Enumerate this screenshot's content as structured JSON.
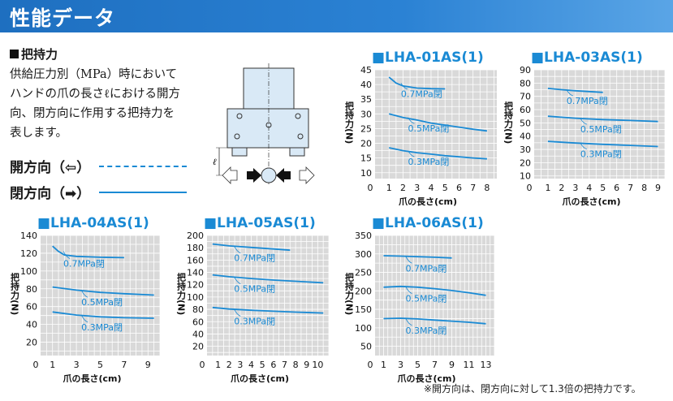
{
  "banner": {
    "title": "性能データ"
  },
  "section": {
    "title": "把持力"
  },
  "description": [
    "供給圧力別（MPa）時において",
    "ハンドの爪の長さℓにおける開方",
    "向、閉方向に作用する把持力を",
    "表します。"
  ],
  "legend": {
    "open_label": "開方向（⇦）",
    "close_label": "閉方向（➡）"
  },
  "diagram": {
    "length_symbol": "ℓ"
  },
  "footnote": "※開方向は、閉方向に対して1.3倍の把持力です。",
  "colors": {
    "accent": "#1a8ad4",
    "grid": "#ffffff",
    "plot_bg": "#d9d9d9",
    "banner": "#1e6fc0"
  },
  "chart_data": [
    {
      "type": "line",
      "title": "■LHA-01AS(1)",
      "xlabel": "爪の長さ(cm)",
      "ylabel": "把持力(N)",
      "xlim": [
        0,
        8.7
      ],
      "ylim": [
        8,
        45
      ],
      "xticks": [
        0,
        1,
        2,
        3,
        4,
        5,
        6,
        7,
        8
      ],
      "yticks": [
        10,
        15,
        20,
        25,
        30,
        35,
        40,
        45
      ],
      "grid": true,
      "series": [
        {
          "name": "0.7MPa閉",
          "x": [
            1,
            1.5,
            2,
            3,
            4,
            5
          ],
          "y": [
            42.5,
            40.5,
            39.5,
            38.8,
            38.6,
            38.5
          ]
        },
        {
          "name": "0.5MPa閉",
          "x": [
            1,
            2,
            3,
            4,
            5,
            6,
            7,
            8
          ],
          "y": [
            30,
            28.8,
            27.9,
            26.9,
            26.2,
            25.5,
            24.8,
            24.2
          ]
        },
        {
          "name": "0.3MPa閉",
          "x": [
            1,
            2,
            3,
            4,
            5,
            6,
            7,
            8
          ],
          "y": [
            18.5,
            17.5,
            16.8,
            16.3,
            15.8,
            15.4,
            15,
            14.7
          ]
        }
      ]
    },
    {
      "type": "line",
      "title": "■LHA-03AS(1)",
      "xlabel": "爪の長さ(cm)",
      "ylabel": "把持力(N)",
      "xlim": [
        0,
        9.5
      ],
      "ylim": [
        8,
        90
      ],
      "xticks": [
        0,
        1,
        2,
        3,
        4,
        5,
        6,
        7,
        8,
        9
      ],
      "yticks": [
        10,
        20,
        30,
        40,
        50,
        60,
        70,
        80,
        90
      ],
      "grid": true,
      "series": [
        {
          "name": "0.7MPa閉",
          "x": [
            1,
            2,
            3,
            4,
            5
          ],
          "y": [
            76,
            75,
            74.2,
            73.6,
            73
          ]
        },
        {
          "name": "0.5MPa閉",
          "x": [
            1,
            3,
            5,
            7,
            9
          ],
          "y": [
            55,
            53.5,
            52.5,
            51.8,
            51
          ]
        },
        {
          "name": "0.3MPa閉",
          "x": [
            1,
            3,
            5,
            7,
            9
          ],
          "y": [
            36,
            34.8,
            33.8,
            33,
            32.2
          ]
        }
      ]
    },
    {
      "type": "line",
      "title": "■LHA-04AS(1)",
      "xlabel": "爪の長さ(cm)",
      "ylabel": "把持力(N)",
      "xlim": [
        0,
        10
      ],
      "ylim": [
        5,
        140
      ],
      "xticks": [
        0,
        1,
        3,
        5,
        7,
        9
      ],
      "yticks": [
        20,
        40,
        60,
        80,
        100,
        120,
        140
      ],
      "grid": true,
      "series": [
        {
          "name": "0.7MPa閉",
          "x": [
            1,
            1.5,
            2,
            3,
            5,
            7
          ],
          "y": [
            128,
            122,
            118,
            116.5,
            115.5,
            115
          ]
        },
        {
          "name": "0.5MPa閉",
          "x": [
            1,
            3,
            5,
            7,
            9.5
          ],
          "y": [
            82,
            78.5,
            76,
            74.5,
            73
          ]
        },
        {
          "name": "0.3MPa閉",
          "x": [
            1,
            3,
            5,
            7,
            9.5
          ],
          "y": [
            54,
            50.5,
            48.5,
            47.5,
            47
          ]
        }
      ]
    },
    {
      "type": "line",
      "title": "■LHA-05AS(1)",
      "xlabel": "爪の長さ(cm)",
      "ylabel": "把持力(N)",
      "xlim": [
        0,
        11
      ],
      "ylim": [
        5,
        200
      ],
      "xticks": [
        0,
        1,
        2,
        3,
        4,
        5,
        6,
        7,
        8,
        9,
        10
      ],
      "yticks": [
        20,
        40,
        60,
        80,
        100,
        120,
        140,
        160,
        180,
        200
      ],
      "grid": true,
      "series": [
        {
          "name": "0.7MPa閉",
          "x": [
            0.5,
            2,
            4,
            6,
            7.5
          ],
          "y": [
            186,
            183,
            180.5,
            178,
            176
          ]
        },
        {
          "name": "0.5MPa閉",
          "x": [
            0.5,
            2,
            4,
            6,
            8,
            10.5
          ],
          "y": [
            136,
            133,
            130,
            127.5,
            125.5,
            123
          ]
        },
        {
          "name": "0.3MPa閉",
          "x": [
            0.5,
            2,
            4,
            6,
            8,
            10.5
          ],
          "y": [
            83,
            80.5,
            78.5,
            77,
            75.5,
            74
          ]
        }
      ]
    },
    {
      "type": "line",
      "title": "■LHA-06AS(1)",
      "xlabel": "爪の長さ(cm)",
      "ylabel": "把持力(N)",
      "xlim": [
        0,
        14
      ],
      "ylim": [
        25,
        350
      ],
      "xticks": [
        0,
        1,
        3,
        5,
        7,
        9,
        11,
        13
      ],
      "yticks": [
        50,
        100,
        150,
        200,
        250,
        300,
        350
      ],
      "grid": true,
      "series": [
        {
          "name": "0.7MPa閉",
          "x": [
            1,
            3,
            5,
            7,
            9
          ],
          "y": [
            295,
            294,
            292.5,
            291,
            289
          ]
        },
        {
          "name": "0.5MPa閉",
          "x": [
            1,
            3,
            5,
            7,
            9,
            11,
            13
          ],
          "y": [
            210,
            212,
            210,
            206,
            201,
            195,
            188
          ]
        },
        {
          "name": "0.3MPa閉",
          "x": [
            1,
            3,
            5,
            7,
            9,
            11,
            13
          ],
          "y": [
            125,
            126,
            124,
            121,
            118,
            115,
            111
          ]
        }
      ]
    }
  ]
}
